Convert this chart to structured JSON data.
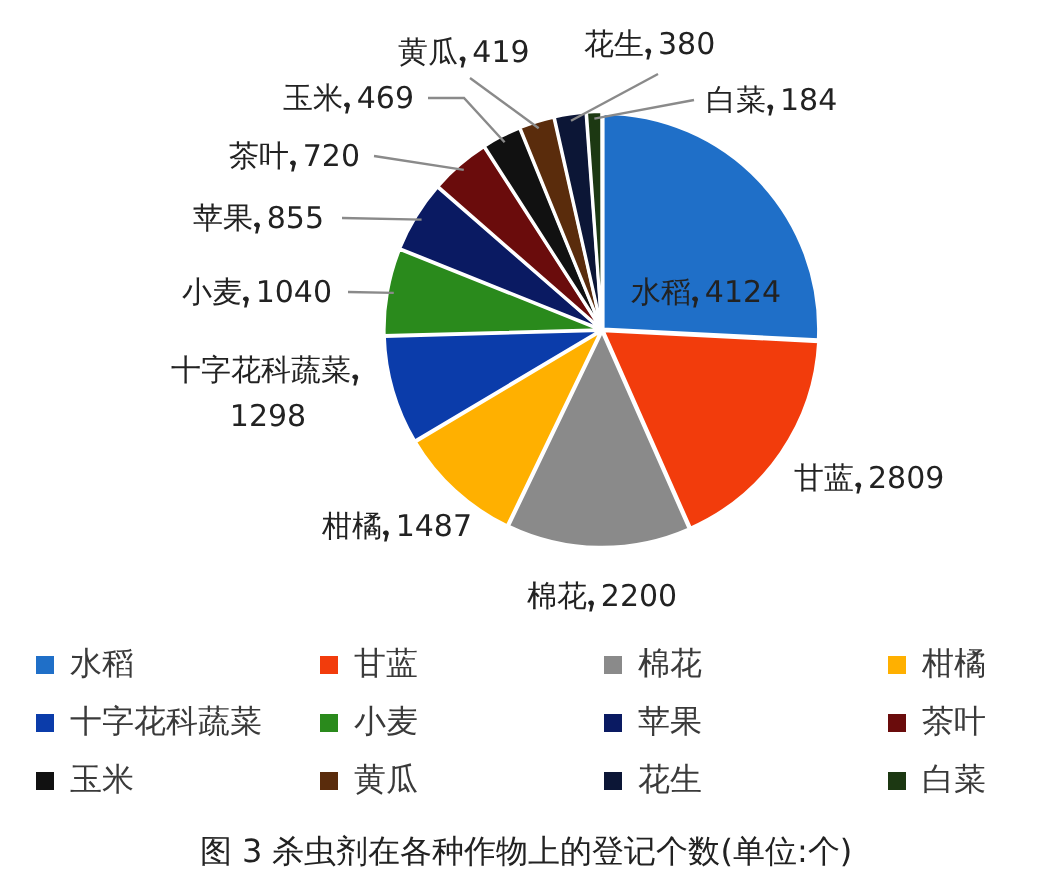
{
  "chart_data": {
    "type": "pie",
    "title": "图 3 杀虫剂在各种作物上的登记个数(单位:个)",
    "categories": [
      "水稻",
      "甘蓝",
      "棉花",
      "柑橘",
      "十字花科蔬菜",
      "小麦",
      "苹果",
      "茶叶",
      "玉米",
      "黄瓜",
      "花生",
      "白菜"
    ],
    "values": [
      4124,
      2809,
      2200,
      1487,
      1298,
      1040,
      855,
      720,
      469,
      419,
      380,
      184
    ],
    "colors": [
      "#1f6fc8",
      "#f23c0c",
      "#8a8a8a",
      "#ffb000",
      "#0b3caa",
      "#2a8a1c",
      "#0a1a62",
      "#6a0c0c",
      "#111111",
      "#5a2c0c",
      "#0c1636",
      "#1c3812"
    ],
    "legend": "bottom",
    "data_labels": true
  }
}
